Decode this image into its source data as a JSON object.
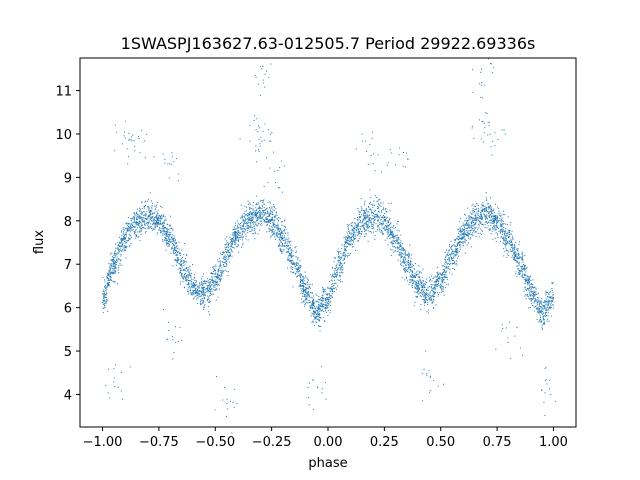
{
  "chart_data": {
    "type": "scatter",
    "title": "1SWASPJ163627.63-012505.7 Period 29922.69336s",
    "xlabel": "phase",
    "ylabel": "flux",
    "xlim": [
      -1.1,
      1.1
    ],
    "ylim": [
      3.25,
      11.75
    ],
    "xticks": [
      -1.0,
      -0.75,
      -0.5,
      -0.25,
      0.0,
      0.25,
      0.5,
      0.75,
      1.0
    ],
    "xtick_labels": [
      "−1.00",
      "−0.75",
      "−0.50",
      "−0.25",
      "0.00",
      "0.25",
      "0.50",
      "0.75",
      "1.00"
    ],
    "yticks": [
      4,
      5,
      6,
      7,
      8,
      9,
      10,
      11
    ],
    "ytick_labels": [
      "4",
      "5",
      "6",
      "7",
      "8",
      "9",
      "10",
      "11"
    ],
    "grid": false,
    "legend": "none",
    "marker_color": "#1f77b4",
    "series": [
      {
        "points": [
          [
            -1.0,
            6.2
          ],
          [
            -0.95,
            7.0
          ],
          [
            -0.9,
            7.6
          ],
          [
            -0.85,
            7.95
          ],
          [
            -0.8,
            8.1
          ],
          [
            -0.75,
            8.0
          ],
          [
            -0.7,
            7.6
          ],
          [
            -0.65,
            7.0
          ],
          [
            -0.6,
            6.5
          ],
          [
            -0.55,
            6.3
          ],
          [
            -0.5,
            6.6
          ],
          [
            -0.45,
            7.2
          ],
          [
            -0.4,
            7.7
          ],
          [
            -0.35,
            8.0
          ],
          [
            -0.3,
            8.15
          ],
          [
            -0.25,
            8.0
          ],
          [
            -0.2,
            7.6
          ],
          [
            -0.15,
            7.0
          ],
          [
            -0.1,
            6.4
          ],
          [
            -0.05,
            5.9
          ],
          [
            0.0,
            6.2
          ],
          [
            0.05,
            7.0
          ],
          [
            0.1,
            7.6
          ],
          [
            0.15,
            7.95
          ],
          [
            0.2,
            8.1
          ],
          [
            0.25,
            8.0
          ],
          [
            0.3,
            7.6
          ],
          [
            0.35,
            7.0
          ],
          [
            0.4,
            6.5
          ],
          [
            0.45,
            6.3
          ],
          [
            0.5,
            6.6
          ],
          [
            0.55,
            7.2
          ],
          [
            0.6,
            7.7
          ],
          [
            0.65,
            8.0
          ],
          [
            0.7,
            8.15
          ],
          [
            0.75,
            8.0
          ],
          [
            0.8,
            7.6
          ],
          [
            0.85,
            7.0
          ],
          [
            0.9,
            6.4
          ],
          [
            0.95,
            5.9
          ],
          [
            1.0,
            6.2
          ]
        ],
        "outliers": [
          [
            -0.9,
            9.9
          ],
          [
            -0.85,
            9.6
          ],
          [
            -0.7,
            9.4
          ],
          [
            -0.32,
            10.1
          ],
          [
            -0.28,
            9.8
          ],
          [
            -0.25,
            9.2
          ],
          [
            0.18,
            9.7
          ],
          [
            0.3,
            9.4
          ],
          [
            0.68,
            10.2
          ],
          [
            0.72,
            9.9
          ],
          [
            0.7,
            11.35
          ],
          [
            -0.29,
            11.35
          ],
          [
            -0.95,
            4.3
          ],
          [
            -0.05,
            4.1
          ],
          [
            0.95,
            4.1
          ],
          [
            -0.45,
            3.7
          ],
          [
            0.45,
            4.3
          ],
          [
            0.8,
            5.2
          ],
          [
            -0.7,
            5.3
          ]
        ]
      }
    ]
  }
}
